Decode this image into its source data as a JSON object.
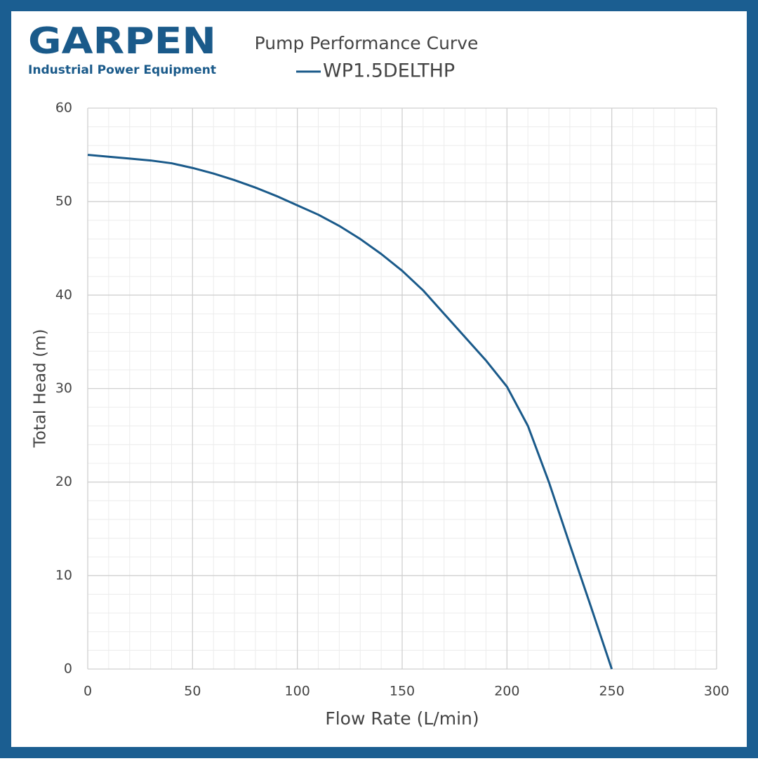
{
  "logo": {
    "name": "GARPEN",
    "tagline": "Industrial Power Equipment"
  },
  "chart_data": {
    "type": "line",
    "title": "Pump Performance Curve",
    "x_label": "Flow Rate (L/min)",
    "y_label": "Total Head (m)",
    "x": [
      0,
      10,
      20,
      30,
      40,
      50,
      60,
      70,
      80,
      90,
      100,
      110,
      120,
      130,
      140,
      150,
      160,
      170,
      180,
      190,
      200,
      210,
      220,
      230,
      240,
      250
    ],
    "series": [
      {
        "name": "WP1.5DELTHP",
        "color": "#1a5a8a",
        "values": [
          55,
          54.8,
          54.6,
          54.4,
          54.1,
          53.6,
          53,
          52.3,
          51.5,
          50.6,
          49.6,
          48.6,
          47.4,
          46,
          44.4,
          42.6,
          40.5,
          38,
          35.5,
          33,
          30.2,
          26,
          20,
          13.3,
          6.7,
          0
        ]
      }
    ],
    "xlim": [
      0,
      300
    ],
    "xticks": [
      0,
      50,
      100,
      150,
      200,
      250,
      300
    ],
    "ylim": [
      0,
      60
    ],
    "yticks": [
      0,
      10,
      20,
      30,
      40,
      50,
      60
    ],
    "grid": true,
    "minor_grid": true,
    "legend": "top"
  }
}
